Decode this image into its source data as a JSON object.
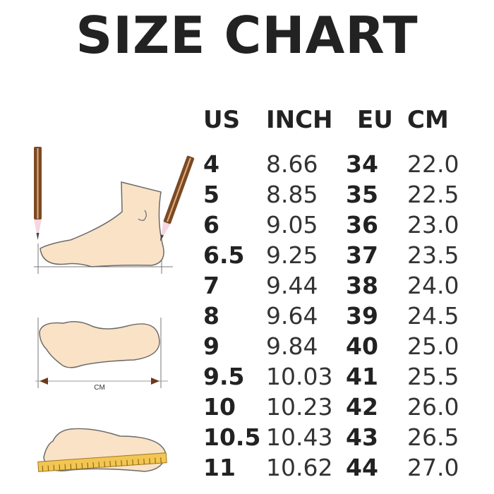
{
  "title": "SIZE CHART",
  "headers": [
    "US",
    "INCH",
    "EU",
    "CM"
  ],
  "rows": [
    [
      "4",
      "8.66",
      "34",
      "22.0"
    ],
    [
      "5",
      "8.85",
      "35",
      "22.5"
    ],
    [
      "6",
      "9.05",
      "36",
      "23.0"
    ],
    [
      "6.5",
      "9.25",
      "37",
      "23.5"
    ],
    [
      "7",
      "9.44",
      "38",
      "24.0"
    ],
    [
      "8",
      "9.64",
      "39",
      "24.5"
    ],
    [
      "9",
      "9.84",
      "40",
      "25.0"
    ],
    [
      "9.5",
      "10.03",
      "41",
      "25.5"
    ],
    [
      "10",
      "10.23",
      "42",
      "26.0"
    ],
    [
      "10.5",
      "10.43",
      "43",
      "26.5"
    ],
    [
      "11",
      "10.62",
      "44",
      "27.0"
    ]
  ],
  "diagram": {
    "length_label": "CM"
  },
  "colors": {
    "skin": "#f9e2c6",
    "outline": "#6b6b6b",
    "pencil": "#7a4a26",
    "ruler": "#f3c552"
  }
}
